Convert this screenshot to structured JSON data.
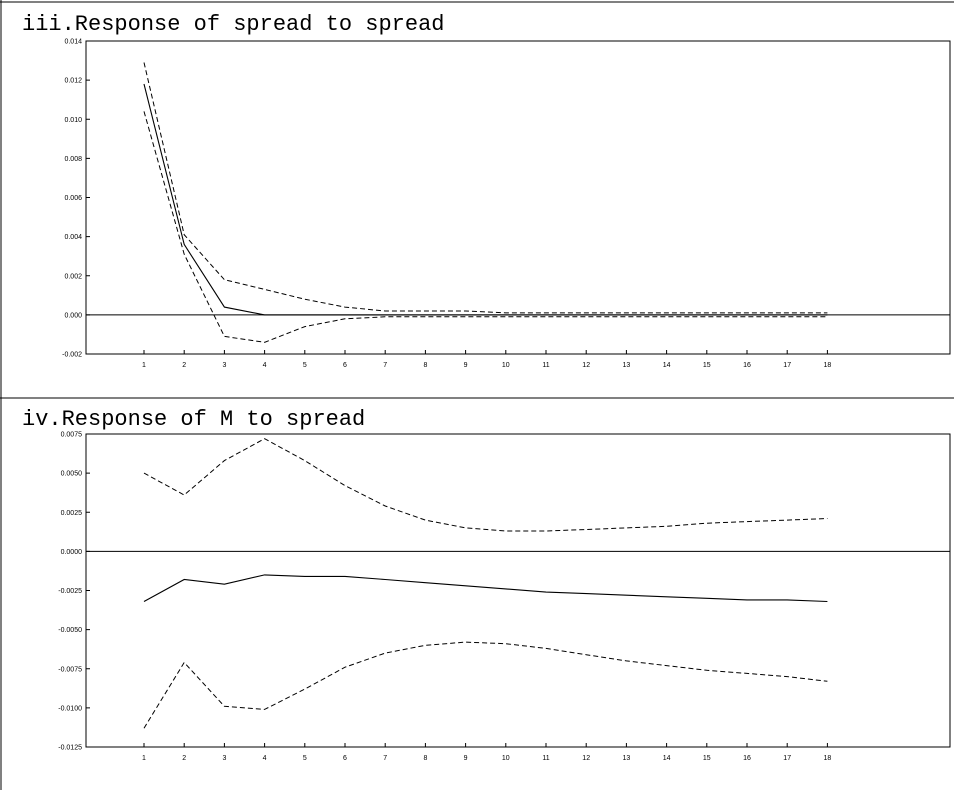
{
  "chart_data": [
    {
      "type": "line",
      "title": "iii.Response of spread to spread",
      "x": [
        1,
        2,
        3,
        4,
        5,
        6,
        7,
        8,
        9,
        10,
        11,
        12,
        13,
        14,
        15,
        16,
        17,
        18
      ],
      "x_tick_labels": [
        "1",
        "2",
        "3",
        "4",
        "5",
        "6",
        "7",
        "8",
        "9",
        "10",
        "11",
        "12",
        "13",
        "14",
        "15",
        "16",
        "17",
        "18"
      ],
      "y_tick_labels": [
        "0.014",
        "0.012",
        "0.010",
        "0.008",
        "0.006",
        "0.004",
        "0.002",
        "0.000",
        "-0.002"
      ],
      "ylim": [
        -0.002,
        0.014
      ],
      "zero_line": true,
      "series": [
        {
          "role": "response",
          "style": "solid",
          "values": [
            0.0118,
            0.0036,
            0.0004,
            0.0,
            0.0,
            0.0,
            0.0,
            0.0,
            0.0,
            0.0,
            0.0,
            0.0,
            0.0,
            0.0,
            0.0,
            0.0,
            0.0,
            0.0
          ]
        },
        {
          "role": "upper",
          "style": "dashed",
          "values": [
            0.0129,
            0.0041,
            0.0018,
            0.0013,
            0.0008,
            0.0004,
            0.0002,
            0.0002,
            0.0002,
            0.0001,
            0.0001,
            0.0001,
            0.0001,
            0.0001,
            0.0001,
            0.0001,
            0.0001,
            0.0001
          ]
        },
        {
          "role": "lower",
          "style": "dashed",
          "values": [
            0.0104,
            0.0031,
            -0.0011,
            -0.0014,
            -0.0006,
            -0.0002,
            -0.0001,
            -0.0001,
            -0.0001,
            -0.0001,
            -0.0001,
            -0.0001,
            -0.0001,
            -0.0001,
            -0.0001,
            -0.0001,
            -0.0001,
            -0.0001
          ]
        }
      ]
    },
    {
      "type": "line",
      "title": "iv.Response of M to spread",
      "x": [
        1,
        2,
        3,
        4,
        5,
        6,
        7,
        8,
        9,
        10,
        11,
        12,
        13,
        14,
        15,
        16,
        17,
        18
      ],
      "x_tick_labels": [
        "1",
        "2",
        "3",
        "4",
        "5",
        "6",
        "7",
        "8",
        "9",
        "10",
        "11",
        "12",
        "13",
        "14",
        "15",
        "16",
        "17",
        "18"
      ],
      "y_tick_labels": [
        "0.0075",
        "0.0050",
        "0.0025",
        "0.0000",
        "-0.0025",
        "-0.0050",
        "-0.0075",
        "-0.0100",
        "-0.0125"
      ],
      "ylim": [
        -0.0125,
        0.0075
      ],
      "zero_line": true,
      "series": [
        {
          "role": "response",
          "style": "solid",
          "values": [
            -0.0032,
            -0.0018,
            -0.0021,
            -0.0015,
            -0.0016,
            -0.0016,
            -0.0018,
            -0.002,
            -0.0022,
            -0.0024,
            -0.0026,
            -0.0027,
            -0.0028,
            -0.0029,
            -0.003,
            -0.0031,
            -0.0031,
            -0.0032
          ]
        },
        {
          "role": "upper",
          "style": "dashed",
          "values": [
            0.005,
            0.0036,
            0.0058,
            0.0072,
            0.0058,
            0.0042,
            0.0029,
            0.002,
            0.0015,
            0.0013,
            0.0013,
            0.0014,
            0.0015,
            0.0016,
            0.0018,
            0.0019,
            0.002,
            0.0021
          ]
        },
        {
          "role": "lower",
          "style": "dashed",
          "values": [
            -0.0113,
            -0.0071,
            -0.0099,
            -0.0101,
            -0.0088,
            -0.0074,
            -0.0065,
            -0.006,
            -0.0058,
            -0.0059,
            -0.0062,
            -0.0066,
            -0.007,
            -0.0073,
            -0.0076,
            -0.0078,
            -0.008,
            -0.0083
          ]
        }
      ]
    }
  ]
}
